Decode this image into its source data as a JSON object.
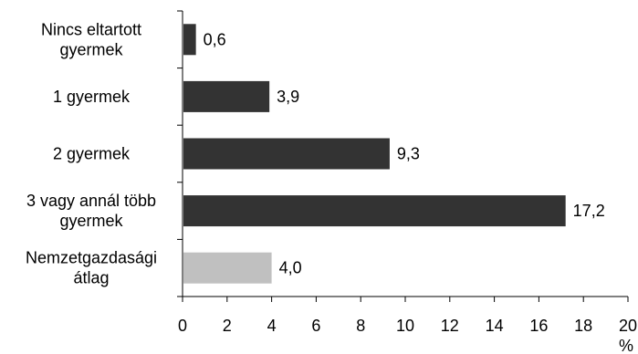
{
  "chart_data": {
    "type": "bar",
    "orientation": "horizontal",
    "categories": [
      [
        "Nincs eltartott",
        "gyermek"
      ],
      [
        "1 gyermek"
      ],
      [
        "2 gyermek"
      ],
      [
        "3 vagy annál több",
        "gyermek"
      ],
      [
        "Nemzetgazdasági",
        "átlag"
      ]
    ],
    "values": [
      0.6,
      3.9,
      9.3,
      17.2,
      4.0
    ],
    "value_labels": [
      "0,6",
      "3,9",
      "9,3",
      "17,2",
      "4,0"
    ],
    "bar_colors": [
      "#333333",
      "#333333",
      "#333333",
      "#333333",
      "#c0c0c0"
    ],
    "xlim": [
      0,
      20
    ],
    "xticks": [
      0,
      2,
      4,
      6,
      8,
      10,
      12,
      14,
      16,
      18,
      20
    ],
    "xtick_labels": [
      "0",
      "2",
      "4",
      "6",
      "8",
      "10",
      "12",
      "14",
      "16",
      "18",
      "20"
    ],
    "xlabel": "%",
    "grid": false,
    "legend": "none"
  }
}
